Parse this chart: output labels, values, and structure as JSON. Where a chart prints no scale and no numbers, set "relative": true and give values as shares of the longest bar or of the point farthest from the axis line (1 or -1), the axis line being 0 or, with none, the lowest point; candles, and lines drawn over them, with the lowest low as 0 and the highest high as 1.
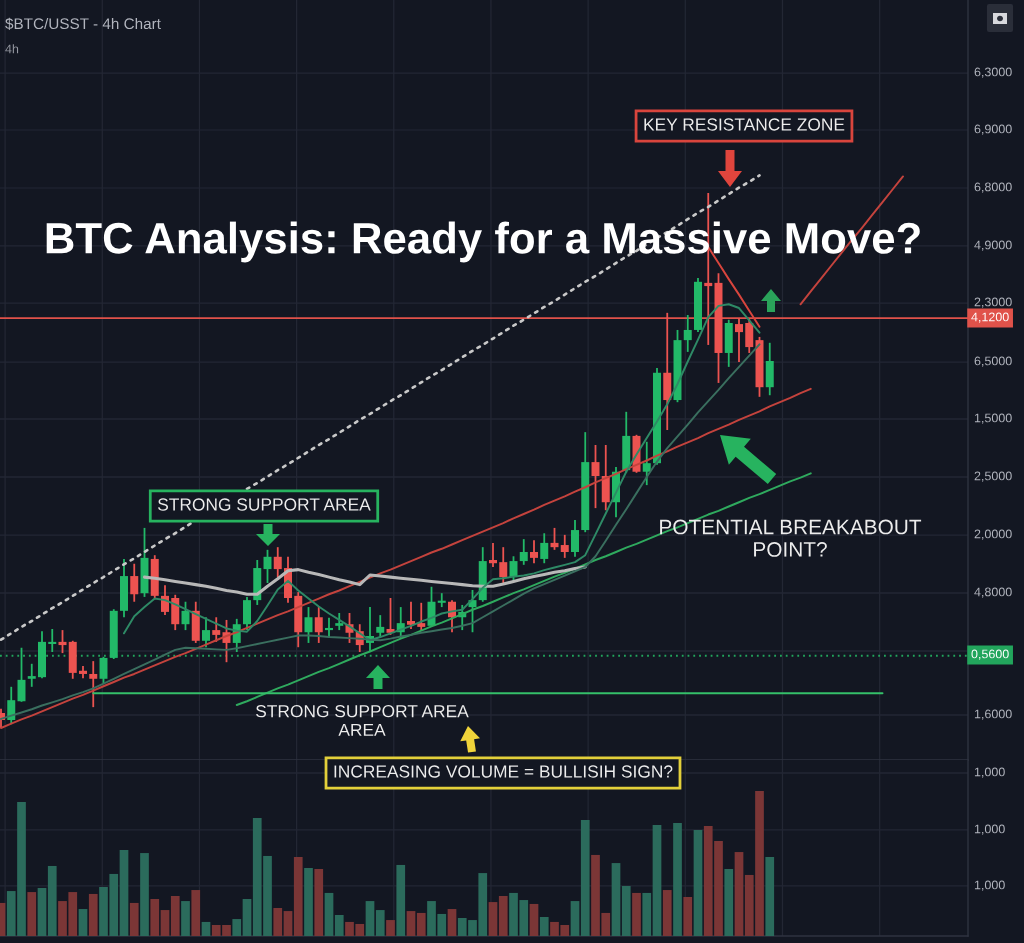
{
  "chart_data": [
    {
      "type": "candlestick",
      "title": "BTC Analysis: Ready for a Massive Move?",
      "subtitle": "$BTC/USST - 4h Chart",
      "annotations": [
        "4h",
        "KEY RESISTANCE ZONE",
        "STRONG SUPPORT AREA",
        "POTENTIAL BREAKABOUT\nPOINT?",
        "STRONG SUPPORT AREA\nAREA",
        "6,3000",
        "6,9000",
        "6,8000",
        "4,9000",
        "2,3000",
        "6,5000",
        "1,5000",
        "2,5000",
        "2,0000",
        "4,8000",
        "1,6000",
        "4,1200",
        "0,5600"
      ],
      "categories": [
        null,
        null,
        null,
        null,
        null,
        null,
        null,
        null,
        null,
        null,
        null,
        null,
        null,
        null,
        null,
        null,
        null,
        null,
        null,
        null,
        null,
        null,
        null,
        null,
        null,
        null,
        null,
        null,
        null,
        null,
        null,
        null,
        null,
        null,
        null,
        null,
        null,
        null,
        null,
        null,
        null,
        null,
        null,
        null,
        null,
        null,
        null,
        null,
        null,
        null,
        null,
        null,
        null,
        null,
        null,
        null,
        null,
        null,
        null,
        null,
        null,
        null,
        null,
        null,
        null,
        null,
        null,
        null,
        null,
        null,
        null,
        null,
        null,
        null,
        null,
        null,
        null,
        null,
        null,
        null,
        null,
        null,
        null,
        null,
        null,
        null,
        null,
        null,
        null
      ],
      "relative": true,
      "ohlc": [
        [
          0.028,
          0.036,
          0.0,
          0.015
        ],
        [
          0.015,
          0.077,
          0.007,
          0.052
        ],
        [
          0.05,
          0.15,
          0.049,
          0.09
        ],
        [
          0.092,
          0.12,
          0.077,
          0.097
        ],
        [
          0.095,
          0.181,
          0.093,
          0.161
        ],
        [
          0.157,
          0.185,
          0.142,
          0.161
        ],
        [
          0.161,
          0.183,
          0.14,
          0.155
        ],
        [
          0.161,
          0.163,
          0.092,
          0.103
        ],
        [
          0.107,
          0.116,
          0.093,
          0.101
        ],
        [
          0.101,
          0.125,
          0.039,
          0.092
        ],
        [
          0.092,
          0.133,
          0.082,
          0.131
        ],
        [
          0.131,
          0.222,
          0.129,
          0.219
        ],
        [
          0.219,
          0.316,
          0.207,
          0.284
        ],
        [
          0.284,
          0.307,
          0.236,
          0.25
        ],
        [
          0.252,
          0.374,
          0.245,
          0.318
        ],
        [
          0.316,
          0.323,
          0.243,
          0.247
        ],
        [
          0.247,
          0.267,
          0.211,
          0.217
        ],
        [
          0.243,
          0.249,
          0.183,
          0.194
        ],
        [
          0.194,
          0.236,
          0.183,
          0.219
        ],
        [
          0.219,
          0.236,
          0.159,
          0.163
        ],
        [
          0.163,
          0.207,
          0.151,
          0.183
        ],
        [
          0.183,
          0.207,
          0.161,
          0.174
        ],
        [
          0.179,
          0.202,
          0.123,
          0.159
        ],
        [
          0.159,
          0.204,
          0.142,
          0.194
        ],
        [
          0.194,
          0.245,
          0.183,
          0.239
        ],
        [
          0.239,
          0.314,
          0.23,
          0.299
        ],
        [
          0.297,
          0.333,
          0.271,
          0.32
        ],
        [
          0.32,
          0.338,
          0.282,
          0.297
        ],
        [
          0.299,
          0.32,
          0.234,
          0.243
        ],
        [
          0.247,
          0.254,
          0.151,
          0.179
        ],
        [
          0.179,
          0.226,
          0.159,
          0.207
        ],
        [
          0.207,
          0.226,
          0.159,
          0.179
        ],
        [
          0.183,
          0.206,
          0.168,
          0.187
        ],
        [
          0.191,
          0.215,
          0.183,
          0.196
        ],
        [
          0.194,
          0.215,
          0.159,
          0.178
        ],
        [
          0.181,
          0.194,
          0.142,
          0.155
        ],
        [
          0.159,
          0.226,
          0.142,
          0.172
        ],
        [
          0.178,
          0.211,
          0.17,
          0.189
        ],
        [
          0.185,
          0.243,
          0.174,
          0.178
        ],
        [
          0.179,
          0.226,
          0.168,
          0.196
        ],
        [
          0.2,
          0.236,
          0.185,
          0.193
        ],
        [
          0.196,
          0.234,
          0.183,
          0.189
        ],
        [
          0.191,
          0.264,
          0.189,
          0.236
        ],
        [
          0.234,
          0.252,
          0.226,
          0.236
        ],
        [
          0.236,
          0.239,
          0.179,
          0.207
        ],
        [
          0.207,
          0.23,
          0.183,
          0.217
        ],
        [
          0.226,
          0.258,
          0.179,
          0.239
        ],
        [
          0.239,
          0.338,
          0.236,
          0.312
        ],
        [
          0.314,
          0.346,
          0.301,
          0.308
        ],
        [
          0.31,
          0.338,
          0.271,
          0.282
        ],
        [
          0.282,
          0.321,
          0.273,
          0.312
        ],
        [
          0.312,
          0.353,
          0.305,
          0.329
        ],
        [
          0.329,
          0.351,
          0.308,
          0.318
        ],
        [
          0.316,
          0.364,
          0.308,
          0.346
        ],
        [
          0.346,
          0.374,
          0.333,
          0.338
        ],
        [
          0.342,
          0.361,
          0.318,
          0.329
        ],
        [
          0.329,
          0.389,
          0.32,
          0.37
        ],
        [
          0.37,
          0.553,
          0.366,
          0.497
        ],
        [
          0.497,
          0.529,
          0.411,
          0.471
        ],
        [
          0.471,
          0.529,
          0.407,
          0.422
        ],
        [
          0.422,
          0.488,
          0.394,
          0.479
        ],
        [
          0.482,
          0.591,
          0.477,
          0.546
        ],
        [
          0.546,
          0.548,
          0.477,
          0.479
        ],
        [
          0.479,
          0.535,
          0.454,
          0.495
        ],
        [
          0.495,
          0.673,
          0.492,
          0.664
        ],
        [
          0.664,
          0.776,
          0.557,
          0.613
        ],
        [
          0.613,
          0.744,
          0.609,
          0.725
        ],
        [
          0.725,
          0.772,
          0.703,
          0.744
        ],
        [
          0.744,
          0.841,
          0.74,
          0.834
        ],
        [
          0.832,
          1.0,
          0.716,
          0.826
        ],
        [
          0.832,
          0.85,
          0.645,
          0.701
        ],
        [
          0.701,
          0.763,
          0.675,
          0.757
        ],
        [
          0.755,
          0.766,
          0.684,
          0.74
        ],
        [
          0.757,
          0.766,
          0.701,
          0.712
        ],
        [
          0.725,
          0.731,
          0.619,
          0.637
        ],
        [
          0.637,
          0.72,
          0.622,
          0.686
        ],
        null,
        null,
        null,
        null,
        null,
        null,
        null,
        null,
        null,
        null,
        null,
        null,
        null
      ],
      "colors": [
        "#ec5350",
        "#22b968",
        "#22b968",
        "#22b968",
        "#22b968",
        "#22b968",
        "#ec5350",
        "#ec5350",
        "#ec5350",
        "#ec5350",
        "#22b968",
        "#22b968",
        "#22b968",
        "#ec5350",
        "#22b968",
        "#ec5350",
        "#ec5350",
        "#ec5350",
        "#22b968",
        "#ec5350",
        "#22b968",
        "#ec5350",
        "#ec5350",
        "#22b968",
        "#22b968",
        "#22b968",
        "#22b968",
        "#ec5350",
        "#ec5350",
        "#ec5350",
        "#22b968",
        "#ec5350",
        "#22b968",
        "#22b968",
        "#ec5350",
        "#ec5350",
        "#22b968",
        "#22b968",
        "#ec5350",
        "#22b968",
        "#ec5350",
        "#ec5350",
        "#22b968",
        "#22b968",
        "#ec5350",
        "#22b968",
        "#22b968",
        "#22b968",
        "#ec5350",
        "#ec5350",
        "#22b968",
        "#22b968",
        "#ec5350",
        "#22b968",
        "#ec5350",
        "#ec5350",
        "#22b968",
        "#22b968",
        "#ec5350",
        "#ec5350",
        "#22b968",
        "#22b968",
        "#ec5350",
        "#22b968",
        "#22b968",
        "#ec5350",
        "#22b968",
        "#22b968",
        "#22b968",
        "#ec5350",
        "#ec5350",
        "#22b968",
        "#ec5350",
        "#ec5350",
        "#ec5350",
        "#22b968",
        null,
        null,
        null,
        null,
        null,
        null,
        null,
        null,
        null,
        null,
        null,
        null,
        null
      ],
      "series": [
        {
          "type": "line",
          "color": "#c9c9c9",
          "line_style": "dotted",
          "values": [
            0.165,
            0.177,
            0.189,
            0.2,
            0.212,
            0.224,
            0.235,
            0.247,
            0.259,
            0.271,
            0.282,
            0.294,
            0.306,
            0.317,
            0.329,
            0.341,
            0.353,
            0.364,
            0.376,
            0.388,
            null,
            null,
            null,
            null,
            0.447,
            0.458,
            0.47,
            0.482,
            0.493,
            0.505,
            0.517,
            0.529,
            0.54,
            0.552,
            0.564,
            0.576,
            0.587,
            0.599,
            0.611,
            0.622,
            0.634,
            0.646,
            0.658,
            0.669,
            0.681,
            0.693,
            0.705,
            0.716,
            0.728,
            0.74,
            0.752,
            0.763,
            0.775,
            0.787,
            0.798,
            0.81,
            0.822,
            0.834,
            0.845,
            0.857,
            0.869,
            0.881,
            0.892,
            0.904,
            0.916,
            0.927,
            0.939,
            0.951,
            0.963,
            0.974,
            0.986,
            0.998,
            1.01,
            1.021,
            1.033,
            null,
            null,
            null,
            null,
            null,
            null,
            null,
            null,
            null,
            null,
            null,
            null,
            null,
            null
          ]
        },
        {
          "type": "line",
          "color": "#c4433d",
          "values": [
            0.0,
            0.008,
            0.016,
            0.023,
            0.031,
            0.039,
            0.047,
            0.055,
            0.062,
            0.07,
            0.078,
            0.086,
            0.094,
            0.101,
            0.109,
            0.117,
            0.125,
            0.133,
            0.14,
            0.148,
            0.156,
            0.164,
            0.172,
            0.179,
            0.187,
            0.195,
            0.203,
            0.211,
            0.218,
            0.226,
            0.234,
            0.242,
            0.25,
            0.257,
            0.265,
            0.273,
            0.281,
            0.289,
            0.296,
            0.304,
            0.312,
            0.32,
            0.328,
            0.335,
            0.343,
            0.351,
            0.359,
            0.367,
            0.375,
            0.383,
            0.392,
            0.4,
            0.408,
            0.417,
            0.425,
            0.433,
            0.442,
            0.45,
            0.459,
            0.467,
            0.475,
            0.484,
            0.492,
            0.5,
            0.509,
            0.517,
            0.526,
            0.534,
            0.542,
            0.551,
            0.559,
            0.567,
            0.576,
            0.584,
            0.592,
            0.601,
            0.609,
            0.617,
            0.626,
            0.634,
            null,
            null,
            null,
            null,
            null,
            null,
            null,
            null,
            null
          ]
        },
        {
          "type": "line",
          "color": "#2faa5e",
          "values": [
            null,
            null,
            null,
            null,
            null,
            null,
            null,
            null,
            null,
            null,
            null,
            null,
            null,
            null,
            null,
            null,
            null,
            null,
            null,
            null,
            null,
            null,
            null,
            0.043,
            0.05,
            0.058,
            0.066,
            0.074,
            0.081,
            0.089,
            0.097,
            0.105,
            0.112,
            0.12,
            0.128,
            0.136,
            0.143,
            0.151,
            0.159,
            0.167,
            0.174,
            0.182,
            0.19,
            0.197,
            0.205,
            0.213,
            0.221,
            0.228,
            0.236,
            0.244,
            0.252,
            0.259,
            0.267,
            0.275,
            0.283,
            0.29,
            0.298,
            0.306,
            0.314,
            0.321,
            0.329,
            0.337,
            0.344,
            0.352,
            0.36,
            0.368,
            0.375,
            0.383,
            0.391,
            0.399,
            0.406,
            0.414,
            0.422,
            0.43,
            0.437,
            0.445,
            0.453,
            0.461,
            0.468,
            0.476,
            null,
            null,
            null,
            null,
            null,
            null,
            null,
            null,
            null
          ]
        },
        {
          "type": "line",
          "color": "#35c06a",
          "values": [
            null,
            null,
            null,
            null,
            null,
            null,
            null,
            null,
            null,
            0.065,
            0.065,
            0.065,
            0.065,
            0.065,
            0.065,
            0.065,
            0.065,
            0.065,
            0.065,
            0.065,
            0.065,
            0.065,
            0.065,
            0.065,
            0.065,
            0.065,
            0.065,
            0.065,
            0.065,
            0.065,
            0.065,
            0.065,
            0.065,
            0.065,
            0.065,
            0.065,
            0.065,
            0.065,
            0.065,
            0.065,
            0.065,
            0.065,
            0.065,
            0.065,
            0.065,
            0.065,
            0.065,
            0.065,
            0.065,
            0.065,
            0.065,
            0.065,
            0.065,
            0.065,
            0.065,
            0.065,
            0.065,
            0.065,
            0.065,
            0.065,
            0.065,
            0.065,
            0.065,
            0.065,
            0.065,
            0.065,
            0.065,
            0.065,
            0.065,
            0.065,
            0.065,
            0.065,
            0.065,
            0.065,
            0.065,
            0.065,
            0.065,
            0.065,
            0.065,
            0.065,
            0.065,
            0.065,
            0.065,
            0.065,
            0.065,
            0.065,
            0.065,
            null,
            null
          ]
        },
        {
          "type": "line",
          "color": "#b8b8b8",
          "values": [
            null,
            null,
            null,
            null,
            null,
            null,
            null,
            null,
            null,
            null,
            null,
            null,
            null,
            null,
            0.282,
            0.28,
            0.277,
            0.274,
            0.271,
            0.268,
            0.265,
            0.261,
            0.257,
            0.254,
            0.25,
            0.25,
            0.265,
            0.279,
            0.294,
            0.296,
            0.291,
            0.287,
            0.282,
            0.277,
            0.273,
            0.268,
            0.286,
            0.284,
            0.282,
            0.28,
            0.278,
            0.276,
            0.274,
            0.272,
            0.27,
            0.268,
            0.266,
            0.265,
            0.265,
            0.269,
            0.274,
            0.279,
            0.283,
            0.287,
            0.291,
            0.294,
            0.298,
            0.301,
            null,
            null,
            null,
            null,
            null,
            null,
            null,
            null,
            null,
            null,
            null,
            null,
            null,
            null,
            null,
            null,
            null,
            null,
            null,
            null,
            null,
            null,
            null,
            null,
            null,
            null,
            null,
            null,
            null,
            null,
            null
          ]
        },
        {
          "type": "line",
          "color": "#2e8a66",
          "values": [
            null,
            null,
            null,
            null,
            null,
            null,
            null,
            null,
            null,
            null,
            null,
            null,
            0.177,
            0.209,
            0.226,
            0.242,
            0.239,
            0.231,
            0.222,
            0.213,
            0.204,
            0.195,
            0.186,
            0.182,
            0.18,
            0.2,
            0.229,
            0.259,
            0.275,
            0.257,
            0.242,
            0.227,
            0.214,
            0.202,
            0.19,
            0.177,
            0.164,
            0.17,
            0.177,
            0.184,
            0.191,
            0.199,
            0.206,
            0.214,
            0.218,
            0.221,
            0.241,
            0.262,
            0.278,
            0.28,
            0.283,
            0.285,
            0.289,
            0.295,
            0.3,
            0.305,
            0.31,
            0.323,
            0.362,
            0.401,
            0.44,
            0.479,
            0.511,
            0.542,
            0.573,
            0.605,
            0.643,
            0.685,
            0.726,
            0.768,
            0.789,
            0.792,
            0.785,
            0.762,
            0.739,
            null,
            null,
            null,
            null,
            null,
            null,
            null,
            null,
            null,
            null,
            null,
            null,
            null,
            null
          ]
        },
        {
          "type": "line",
          "color": "#3a6f5f",
          "values": [
            0.017,
            0.023,
            0.029,
            0.035,
            0.042,
            0.048,
            0.054,
            0.061,
            0.067,
            0.074,
            0.083,
            0.092,
            0.101,
            0.11,
            0.119,
            0.128,
            0.137,
            0.146,
            0.15,
            0.149,
            0.148,
            0.147,
            0.146,
            0.149,
            0.153,
            0.157,
            0.161,
            0.165,
            0.169,
            0.173,
            0.173,
            0.172,
            0.17,
            0.169,
            0.168,
            0.167,
            0.165,
            0.164,
            0.167,
            0.171,
            0.174,
            0.178,
            0.181,
            0.184,
            0.187,
            0.191,
            0.196,
            0.207,
            0.218,
            0.229,
            0.24,
            0.251,
            0.261,
            0.269,
            0.277,
            0.285,
            0.293,
            0.301,
            0.321,
            0.35,
            0.38,
            0.409,
            0.439,
            0.469,
            0.498,
            0.523,
            0.545,
            0.567,
            0.59,
            0.611,
            0.632,
            0.654,
            0.675,
            0.696,
            0.717,
            null,
            null,
            null,
            null,
            null,
            null,
            null,
            null,
            null,
            null,
            null,
            null,
            null,
            null
          ]
        },
        {
          "type": "line",
          "color": "#d9453d",
          "values": [
            null,
            null,
            null,
            null,
            null,
            null,
            null,
            null,
            null,
            null,
            null,
            null,
            null,
            null,
            null,
            null,
            null,
            null,
            null,
            null,
            null,
            null,
            null,
            null,
            null,
            null,
            null,
            null,
            null,
            null,
            null,
            null,
            null,
            null,
            null,
            null,
            null,
            null,
            null,
            null,
            null,
            null,
            null,
            null,
            null,
            null,
            null,
            null,
            null,
            null,
            null,
            null,
            null,
            null,
            null,
            null,
            null,
            null,
            null,
            null,
            null,
            null,
            null,
            null,
            null,
            null,
            null,
            null,
            null,
            0.899,
            0.869,
            0.839,
            0.81,
            0.78,
            0.75,
            null,
            null,
            null,
            null,
            null,
            null,
            null,
            null,
            null,
            null,
            null,
            null,
            null,
            null
          ]
        },
        {
          "type": "line",
          "color": "#c4433d",
          "values": [
            null,
            null,
            null,
            null,
            null,
            null,
            null,
            null,
            null,
            null,
            null,
            null,
            null,
            null,
            null,
            null,
            null,
            null,
            null,
            null,
            null,
            null,
            null,
            null,
            null,
            null,
            null,
            null,
            null,
            null,
            null,
            null,
            null,
            null,
            null,
            null,
            null,
            null,
            null,
            null,
            null,
            null,
            null,
            null,
            null,
            null,
            null,
            null,
            null,
            null,
            null,
            null,
            null,
            null,
            null,
            null,
            null,
            null,
            null,
            null,
            null,
            null,
            null,
            null,
            null,
            null,
            null,
            null,
            null,
            null,
            null,
            null,
            null,
            null,
            null,
            null,
            null,
            null,
            0.792,
            0.816,
            0.84,
            0.864,
            0.888,
            0.912,
            0.935,
            0.959,
            0.983,
            1.007,
            1.031
          ]
        }
      ],
      "ref_lines": [
        {
          "axis": "y",
          "value": 0.766,
          "color": "#e0524a"
        },
        {
          "axis": "y",
          "value": 0.135,
          "color": "#22a55c",
          "line_style": "dotted"
        }
      ],
      "grid": true,
      "tick_labels": false
    },
    {
      "type": "bar",
      "annotations": [
        "INCREASING VOLUME = BULLISIH SIGN?",
        "1,000",
        "1,000",
        "1,000"
      ],
      "categories": [
        null,
        null,
        null,
        null,
        null,
        null,
        null,
        null,
        null,
        null,
        null,
        null,
        null,
        null,
        null,
        null,
        null,
        null,
        null,
        null,
        null,
        null,
        null,
        null,
        null,
        null,
        null,
        null,
        null,
        null,
        null,
        null,
        null,
        null,
        null,
        null,
        null,
        null,
        null,
        null,
        null,
        null,
        null,
        null,
        null,
        null,
        null,
        null,
        null,
        null,
        null,
        null,
        null,
        null,
        null,
        null,
        null,
        null,
        null,
        null,
        null,
        null,
        null,
        null,
        null,
        null,
        null,
        null,
        null,
        null,
        null,
        null,
        null,
        null,
        null,
        null,
        null,
        null,
        null,
        null,
        null,
        null,
        null,
        null,
        null,
        null,
        null,
        null,
        null
      ],
      "relative": true,
      "values": [
        0.228,
        0.31,
        0.924,
        0.303,
        0.331,
        0.483,
        0.241,
        0.303,
        0.186,
        0.29,
        0.338,
        0.428,
        0.593,
        0.228,
        0.572,
        0.255,
        0.179,
        0.276,
        0.241,
        0.317,
        0.097,
        0.076,
        0.076,
        0.117,
        0.255,
        0.814,
        0.552,
        0.193,
        0.172,
        0.545,
        0.469,
        0.462,
        0.297,
        0.145,
        0.097,
        0.083,
        0.241,
        0.179,
        0.11,
        0.49,
        0.172,
        0.159,
        0.241,
        0.152,
        0.186,
        0.124,
        0.11,
        0.434,
        0.234,
        0.276,
        0.297,
        0.248,
        0.221,
        0.131,
        0.097,
        0.076,
        0.241,
        0.8,
        0.559,
        0.159,
        0.503,
        0.345,
        0.297,
        0.297,
        0.766,
        0.317,
        0.779,
        0.269,
        0.731,
        0.759,
        0.655,
        0.462,
        0.579,
        0.421,
        1.0,
        0.545,
        null,
        null,
        null,
        null,
        null,
        null,
        null,
        null,
        null,
        null,
        null,
        null,
        null
      ],
      "colors": [
        "#7b3636",
        "#2b6b5c",
        "#2b6b5c",
        "#7b3636",
        "#2b6b5c",
        "#2b6b5c",
        "#7b3636",
        "#7b3636",
        "#2b6b5c",
        "#7b3636",
        "#2b6b5c",
        "#2b6b5c",
        "#2b6b5c",
        "#7b3636",
        "#2b6b5c",
        "#7b3636",
        "#7b3636",
        "#7b3636",
        "#2b6b5c",
        "#7b3636",
        "#2b6b5c",
        "#7b3636",
        "#7b3636",
        "#2b6b5c",
        "#2b6b5c",
        "#2b6b5c",
        "#2b6b5c",
        "#7b3636",
        "#7b3636",
        "#7b3636",
        "#2b6b5c",
        "#7b3636",
        "#2b6b5c",
        "#2b6b5c",
        "#7b3636",
        "#7b3636",
        "#2b6b5c",
        "#2b6b5c",
        "#7b3636",
        "#2b6b5c",
        "#7b3636",
        "#7b3636",
        "#2b6b5c",
        "#2b6b5c",
        "#7b3636",
        "#2b6b5c",
        "#2b6b5c",
        "#2b6b5c",
        "#7b3636",
        "#7b3636",
        "#2b6b5c",
        "#2b6b5c",
        "#7b3636",
        "#2b6b5c",
        "#7b3636",
        "#7b3636",
        "#2b6b5c",
        "#2b6b5c",
        "#7b3636",
        "#7b3636",
        "#2b6b5c",
        "#2b6b5c",
        "#7b3636",
        "#2b6b5c",
        "#2b6b5c",
        "#7b3636",
        "#2b6b5c",
        "#7b3636",
        "#2b6b5c",
        "#7b3636",
        "#7b3636",
        "#2b6b5c",
        "#7b3636",
        "#7b3636",
        "#7b3636",
        "#2b6b5c",
        null,
        null,
        null,
        null,
        null,
        null,
        null,
        null,
        null,
        null,
        null,
        null,
        null
      ],
      "grid": true,
      "tick_labels": false
    }
  ]
}
